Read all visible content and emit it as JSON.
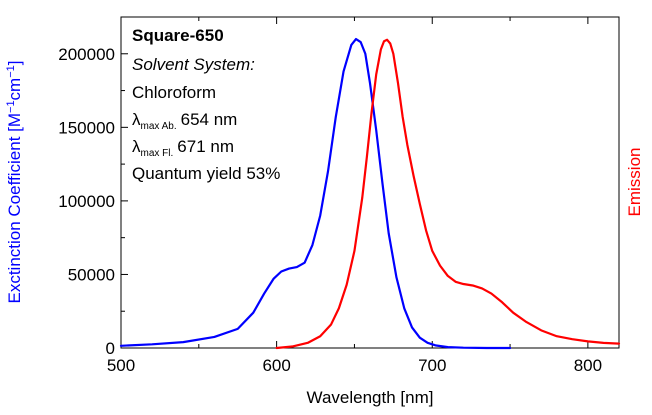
{
  "chart_data": {
    "type": "line",
    "title": "",
    "xlabel": "Wavelength [nm]",
    "ylabel_left": {
      "base": "Exctinction Coefficient [M",
      "exp1": "−1",
      "mid": "cm",
      "exp2": "−1",
      "end": "]"
    },
    "ylabel_right": "Emission",
    "xlim": [
      500,
      820
    ],
    "ylim": [
      0,
      225000
    ],
    "x_ticks": [
      500,
      600,
      700,
      800
    ],
    "x_tick_labels": [
      "500",
      "600",
      "700",
      "800"
    ],
    "x_minor_ticks": [
      550,
      650,
      750
    ],
    "y_ticks": [
      0,
      50000,
      100000,
      150000,
      200000
    ],
    "y_tick_labels": [
      "0",
      "50000",
      "100000",
      "150000",
      "200000"
    ],
    "y_minor_ticks": [
      25000,
      75000,
      125000,
      175000,
      225000
    ],
    "grid": false,
    "legend": "none",
    "annotation": {
      "name": "Square-650",
      "solvent_label": "Solvent System:",
      "solvent": "Chloroform",
      "abs_label": {
        "symbol": "λ",
        "sub": "max Ab.",
        "value": "654 nm"
      },
      "fl_label": {
        "symbol": "λ",
        "sub": "max Fl.",
        "value": "671 nm"
      },
      "quantum_yield": "Quantum yield 53%"
    },
    "series": [
      {
        "axis": "left",
        "color": "#0000ff",
        "x": [
          500,
          520,
          540,
          560,
          575,
          585,
          592,
          598,
          603,
          608,
          613,
          618,
          623,
          628,
          633,
          638,
          643,
          648,
          651,
          654,
          657,
          660,
          664,
          668,
          672,
          677,
          682,
          687,
          692,
          697,
          702,
          710,
          720,
          735,
          750
        ],
        "y": [
          1500,
          2500,
          4000,
          7500,
          13000,
          24000,
          37000,
          47000,
          52000,
          54000,
          55000,
          58000,
          70000,
          90000,
          120000,
          157000,
          188000,
          206000,
          210000,
          208000,
          200000,
          180000,
          148000,
          112000,
          78000,
          48000,
          27000,
          14000,
          7000,
          3500,
          1800,
          600,
          200,
          0,
          0
        ]
      },
      {
        "axis": "right",
        "color": "#ff0000",
        "x": [
          600,
          610,
          620,
          628,
          635,
          640,
          645,
          650,
          655,
          658,
          661,
          664,
          667,
          669,
          671,
          673,
          675,
          678,
          681,
          684,
          688,
          692,
          696,
          700,
          705,
          710,
          715,
          720,
          726,
          732,
          738,
          745,
          752,
          760,
          770,
          780,
          790,
          800,
          810,
          820
        ],
        "y": [
          0,
          1000,
          3500,
          8000,
          16000,
          27000,
          43000,
          66000,
          102000,
          130000,
          160000,
          186000,
          203000,
          208500,
          209500,
          207000,
          200000,
          180000,
          157000,
          138000,
          117000,
          98000,
          80000,
          66000,
          56000,
          49000,
          45000,
          43500,
          42500,
          40500,
          37000,
          31000,
          24000,
          18000,
          12000,
          8000,
          6000,
          4500,
          3500,
          3000
        ]
      }
    ]
  }
}
